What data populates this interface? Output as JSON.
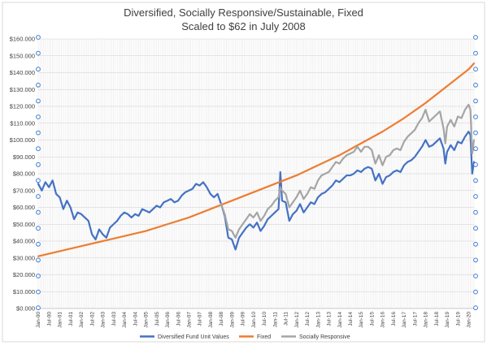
{
  "chart_data": {
    "type": "line",
    "title_lines": [
      "Diversified, Socially Responsive/Sustainable, Fixed",
      "Scaled to $62 in July 2008"
    ],
    "xlabel": "",
    "ylabel": "",
    "ylim": [
      0,
      160000
    ],
    "y_ticks": [
      0,
      10000,
      20000,
      30000,
      40000,
      50000,
      60000,
      70000,
      80000,
      90000,
      100000,
      110000,
      120000,
      130000,
      140000,
      150000,
      160000
    ],
    "y_tick_labels": [
      "$0.000",
      "$10.000",
      "$20.000",
      "$30.000",
      "$40.000",
      "$50.000",
      "$60.000",
      "$70.000",
      "$80.000",
      "$90.000",
      "$100.000",
      "$110.000",
      "$120.000",
      "$130.000",
      "$140.000",
      "$150.000",
      "$160.000"
    ],
    "x_tick_labels": [
      "Jan-00",
      "Jul-00",
      "Jan-01",
      "Jul-01",
      "Jan-02",
      "Jul-02",
      "Jan-03",
      "Jul-03",
      "Jan-04",
      "Jul-04",
      "Jan-05",
      "Jul-05",
      "Jan-06",
      "Jul-06",
      "Jan-07",
      "Jul-07",
      "Jan-08",
      "Jul-08",
      "Jan-09",
      "Jul-09",
      "Jan-10",
      "Jul-10",
      "Jan-11",
      "Jul-11",
      "Jan-12",
      "Jul-12",
      "Jan-13",
      "Jul-13",
      "Jan-14",
      "Jul-14",
      "Jan-15",
      "Jul-15",
      "Jan-16",
      "Jul-16",
      "Jan-17",
      "Jul-17",
      "Jan-18",
      "Jul-18",
      "Jan-19",
      "Jul-19",
      "Jan-20"
    ],
    "x_range": [
      "2000-01",
      "2020-04"
    ],
    "grid": true,
    "legend_position": "bottom",
    "series": [
      {
        "name": "Diversified Fund Unit Values",
        "color": "#4472C4",
        "points": [
          [
            "2000-01",
            74000
          ],
          [
            "2000-03",
            70000
          ],
          [
            "2000-05",
            75000
          ],
          [
            "2000-07",
            72000
          ],
          [
            "2000-09",
            76000
          ],
          [
            "2000-11",
            68000
          ],
          [
            "2001-01",
            66000
          ],
          [
            "2001-03",
            59000
          ],
          [
            "2001-05",
            64000
          ],
          [
            "2001-07",
            60000
          ],
          [
            "2001-09",
            53000
          ],
          [
            "2001-11",
            57000
          ],
          [
            "2002-01",
            56000
          ],
          [
            "2002-03",
            54000
          ],
          [
            "2002-05",
            52000
          ],
          [
            "2002-07",
            44000
          ],
          [
            "2002-09",
            41000
          ],
          [
            "2002-11",
            47000
          ],
          [
            "2003-01",
            44000
          ],
          [
            "2003-03",
            42000
          ],
          [
            "2003-05",
            48000
          ],
          [
            "2003-07",
            50000
          ],
          [
            "2003-09",
            52000
          ],
          [
            "2003-11",
            55000
          ],
          [
            "2004-01",
            57000
          ],
          [
            "2004-03",
            56000
          ],
          [
            "2004-05",
            54000
          ],
          [
            "2004-07",
            56000
          ],
          [
            "2004-09",
            55000
          ],
          [
            "2004-11",
            59000
          ],
          [
            "2005-01",
            58000
          ],
          [
            "2005-03",
            57000
          ],
          [
            "2005-05",
            59000
          ],
          [
            "2005-07",
            61000
          ],
          [
            "2005-09",
            60000
          ],
          [
            "2005-11",
            63000
          ],
          [
            "2006-01",
            64000
          ],
          [
            "2006-03",
            65000
          ],
          [
            "2006-05",
            63000
          ],
          [
            "2006-07",
            64000
          ],
          [
            "2006-09",
            67000
          ],
          [
            "2006-11",
            69000
          ],
          [
            "2007-01",
            70000
          ],
          [
            "2007-03",
            71000
          ],
          [
            "2007-05",
            74000
          ],
          [
            "2007-07",
            73000
          ],
          [
            "2007-09",
            75000
          ],
          [
            "2007-11",
            72000
          ],
          [
            "2008-01",
            68000
          ],
          [
            "2008-03",
            66000
          ],
          [
            "2008-05",
            68000
          ],
          [
            "2008-07",
            62000
          ],
          [
            "2008-09",
            55000
          ],
          [
            "2008-11",
            42000
          ],
          [
            "2009-01",
            41000
          ],
          [
            "2009-03",
            35000
          ],
          [
            "2009-05",
            42000
          ],
          [
            "2009-07",
            45000
          ],
          [
            "2009-09",
            48000
          ],
          [
            "2009-11",
            50000
          ],
          [
            "2010-01",
            48000
          ],
          [
            "2010-03",
            51000
          ],
          [
            "2010-05",
            46000
          ],
          [
            "2010-07",
            49000
          ],
          [
            "2010-09",
            53000
          ],
          [
            "2010-11",
            55000
          ],
          [
            "2011-01",
            57000
          ],
          [
            "2011-03",
            59000
          ],
          [
            "2011-04",
            81000
          ],
          [
            "2011-05",
            64000
          ],
          [
            "2011-07",
            63000
          ],
          [
            "2011-09",
            52000
          ],
          [
            "2011-11",
            56000
          ],
          [
            "2012-01",
            58000
          ],
          [
            "2012-03",
            62000
          ],
          [
            "2012-05",
            57000
          ],
          [
            "2012-07",
            60000
          ],
          [
            "2012-09",
            63000
          ],
          [
            "2012-11",
            62000
          ],
          [
            "2013-01",
            66000
          ],
          [
            "2013-03",
            68000
          ],
          [
            "2013-05",
            69000
          ],
          [
            "2013-07",
            71000
          ],
          [
            "2013-09",
            73000
          ],
          [
            "2013-11",
            76000
          ],
          [
            "2014-01",
            75000
          ],
          [
            "2014-03",
            77000
          ],
          [
            "2014-05",
            79000
          ],
          [
            "2014-07",
            79000
          ],
          [
            "2014-09",
            80000
          ],
          [
            "2014-11",
            82000
          ],
          [
            "2015-01",
            81000
          ],
          [
            "2015-03",
            83000
          ],
          [
            "2015-05",
            84000
          ],
          [
            "2015-07",
            83000
          ],
          [
            "2015-09",
            76000
          ],
          [
            "2015-11",
            80000
          ],
          [
            "2016-01",
            74000
          ],
          [
            "2016-03",
            78000
          ],
          [
            "2016-05",
            79000
          ],
          [
            "2016-07",
            81000
          ],
          [
            "2016-09",
            82000
          ],
          [
            "2016-11",
            81000
          ],
          [
            "2017-01",
            85000
          ],
          [
            "2017-03",
            87000
          ],
          [
            "2017-05",
            88000
          ],
          [
            "2017-07",
            90000
          ],
          [
            "2017-09",
            93000
          ],
          [
            "2017-11",
            96000
          ],
          [
            "2018-01",
            100000
          ],
          [
            "2018-03",
            96000
          ],
          [
            "2018-05",
            97000
          ],
          [
            "2018-07",
            99000
          ],
          [
            "2018-09",
            101000
          ],
          [
            "2018-11",
            95000
          ],
          [
            "2018-12",
            86000
          ],
          [
            "2019-01",
            93000
          ],
          [
            "2019-03",
            97000
          ],
          [
            "2019-05",
            94000
          ],
          [
            "2019-07",
            99000
          ],
          [
            "2019-09",
            98000
          ],
          [
            "2019-11",
            102000
          ],
          [
            "2020-01",
            105000
          ],
          [
            "2020-02",
            103000
          ],
          [
            "2020-03",
            80000
          ],
          [
            "2020-04",
            87000
          ]
        ]
      },
      {
        "name": "Fixed",
        "color": "#ED7D31",
        "points": [
          [
            "2000-01",
            31000
          ],
          [
            "2001-01",
            34000
          ],
          [
            "2002-01",
            37000
          ],
          [
            "2003-01",
            40000
          ],
          [
            "2004-01",
            43000
          ],
          [
            "2005-01",
            46000
          ],
          [
            "2006-01",
            50000
          ],
          [
            "2007-01",
            54000
          ],
          [
            "2008-01",
            59000
          ],
          [
            "2009-01",
            64000
          ],
          [
            "2010-01",
            69000
          ],
          [
            "2011-01",
            74000
          ],
          [
            "2012-01",
            79000
          ],
          [
            "2013-01",
            85000
          ],
          [
            "2014-01",
            91000
          ],
          [
            "2015-01",
            98000
          ],
          [
            "2016-01",
            105000
          ],
          [
            "2017-01",
            113000
          ],
          [
            "2018-01",
            122000
          ],
          [
            "2019-01",
            132000
          ],
          [
            "2020-01",
            142000
          ],
          [
            "2020-04",
            145500
          ]
        ]
      },
      {
        "name": "Socially Responsive",
        "color": "#A5A5A5",
        "points": [
          [
            "2008-07",
            62000
          ],
          [
            "2008-09",
            56000
          ],
          [
            "2008-11",
            47000
          ],
          [
            "2009-01",
            46000
          ],
          [
            "2009-03",
            42000
          ],
          [
            "2009-05",
            47000
          ],
          [
            "2009-07",
            50000
          ],
          [
            "2009-09",
            53000
          ],
          [
            "2009-11",
            56000
          ],
          [
            "2010-01",
            54000
          ],
          [
            "2010-03",
            57000
          ],
          [
            "2010-05",
            52000
          ],
          [
            "2010-07",
            55000
          ],
          [
            "2010-09",
            59000
          ],
          [
            "2010-11",
            61000
          ],
          [
            "2011-01",
            64000
          ],
          [
            "2011-03",
            66000
          ],
          [
            "2011-04",
            72000
          ],
          [
            "2011-05",
            70000
          ],
          [
            "2011-07",
            68000
          ],
          [
            "2011-09",
            60000
          ],
          [
            "2011-11",
            63000
          ],
          [
            "2012-01",
            66000
          ],
          [
            "2012-03",
            70000
          ],
          [
            "2012-05",
            65000
          ],
          [
            "2012-07",
            68000
          ],
          [
            "2012-09",
            72000
          ],
          [
            "2012-11",
            71000
          ],
          [
            "2013-01",
            76000
          ],
          [
            "2013-03",
            79000
          ],
          [
            "2013-05",
            80000
          ],
          [
            "2013-07",
            81000
          ],
          [
            "2013-09",
            84000
          ],
          [
            "2013-11",
            87000
          ],
          [
            "2014-01",
            86000
          ],
          [
            "2014-03",
            89000
          ],
          [
            "2014-05",
            91000
          ],
          [
            "2014-07",
            92000
          ],
          [
            "2014-09",
            93000
          ],
          [
            "2014-11",
            96000
          ],
          [
            "2015-01",
            93000
          ],
          [
            "2015-03",
            96000
          ],
          [
            "2015-05",
            96000
          ],
          [
            "2015-07",
            94000
          ],
          [
            "2015-09",
            86000
          ],
          [
            "2015-11",
            91000
          ],
          [
            "2016-01",
            85000
          ],
          [
            "2016-03",
            90000
          ],
          [
            "2016-05",
            91000
          ],
          [
            "2016-07",
            94000
          ],
          [
            "2016-09",
            95000
          ],
          [
            "2016-11",
            94000
          ],
          [
            "2017-01",
            99000
          ],
          [
            "2017-03",
            102000
          ],
          [
            "2017-05",
            104000
          ],
          [
            "2017-07",
            106000
          ],
          [
            "2017-09",
            110000
          ],
          [
            "2017-11",
            113000
          ],
          [
            "2018-01",
            118000
          ],
          [
            "2018-03",
            111000
          ],
          [
            "2018-05",
            113000
          ],
          [
            "2018-07",
            115000
          ],
          [
            "2018-09",
            117000
          ],
          [
            "2018-11",
            107000
          ],
          [
            "2018-12",
            98000
          ],
          [
            "2019-01",
            108000
          ],
          [
            "2019-03",
            112000
          ],
          [
            "2019-05",
            108000
          ],
          [
            "2019-07",
            114000
          ],
          [
            "2019-09",
            113000
          ],
          [
            "2019-11",
            118000
          ],
          [
            "2020-01",
            121000
          ],
          [
            "2020-02",
            118000
          ],
          [
            "2020-03",
            92000
          ],
          [
            "2020-04",
            100000
          ]
        ]
      }
    ]
  }
}
